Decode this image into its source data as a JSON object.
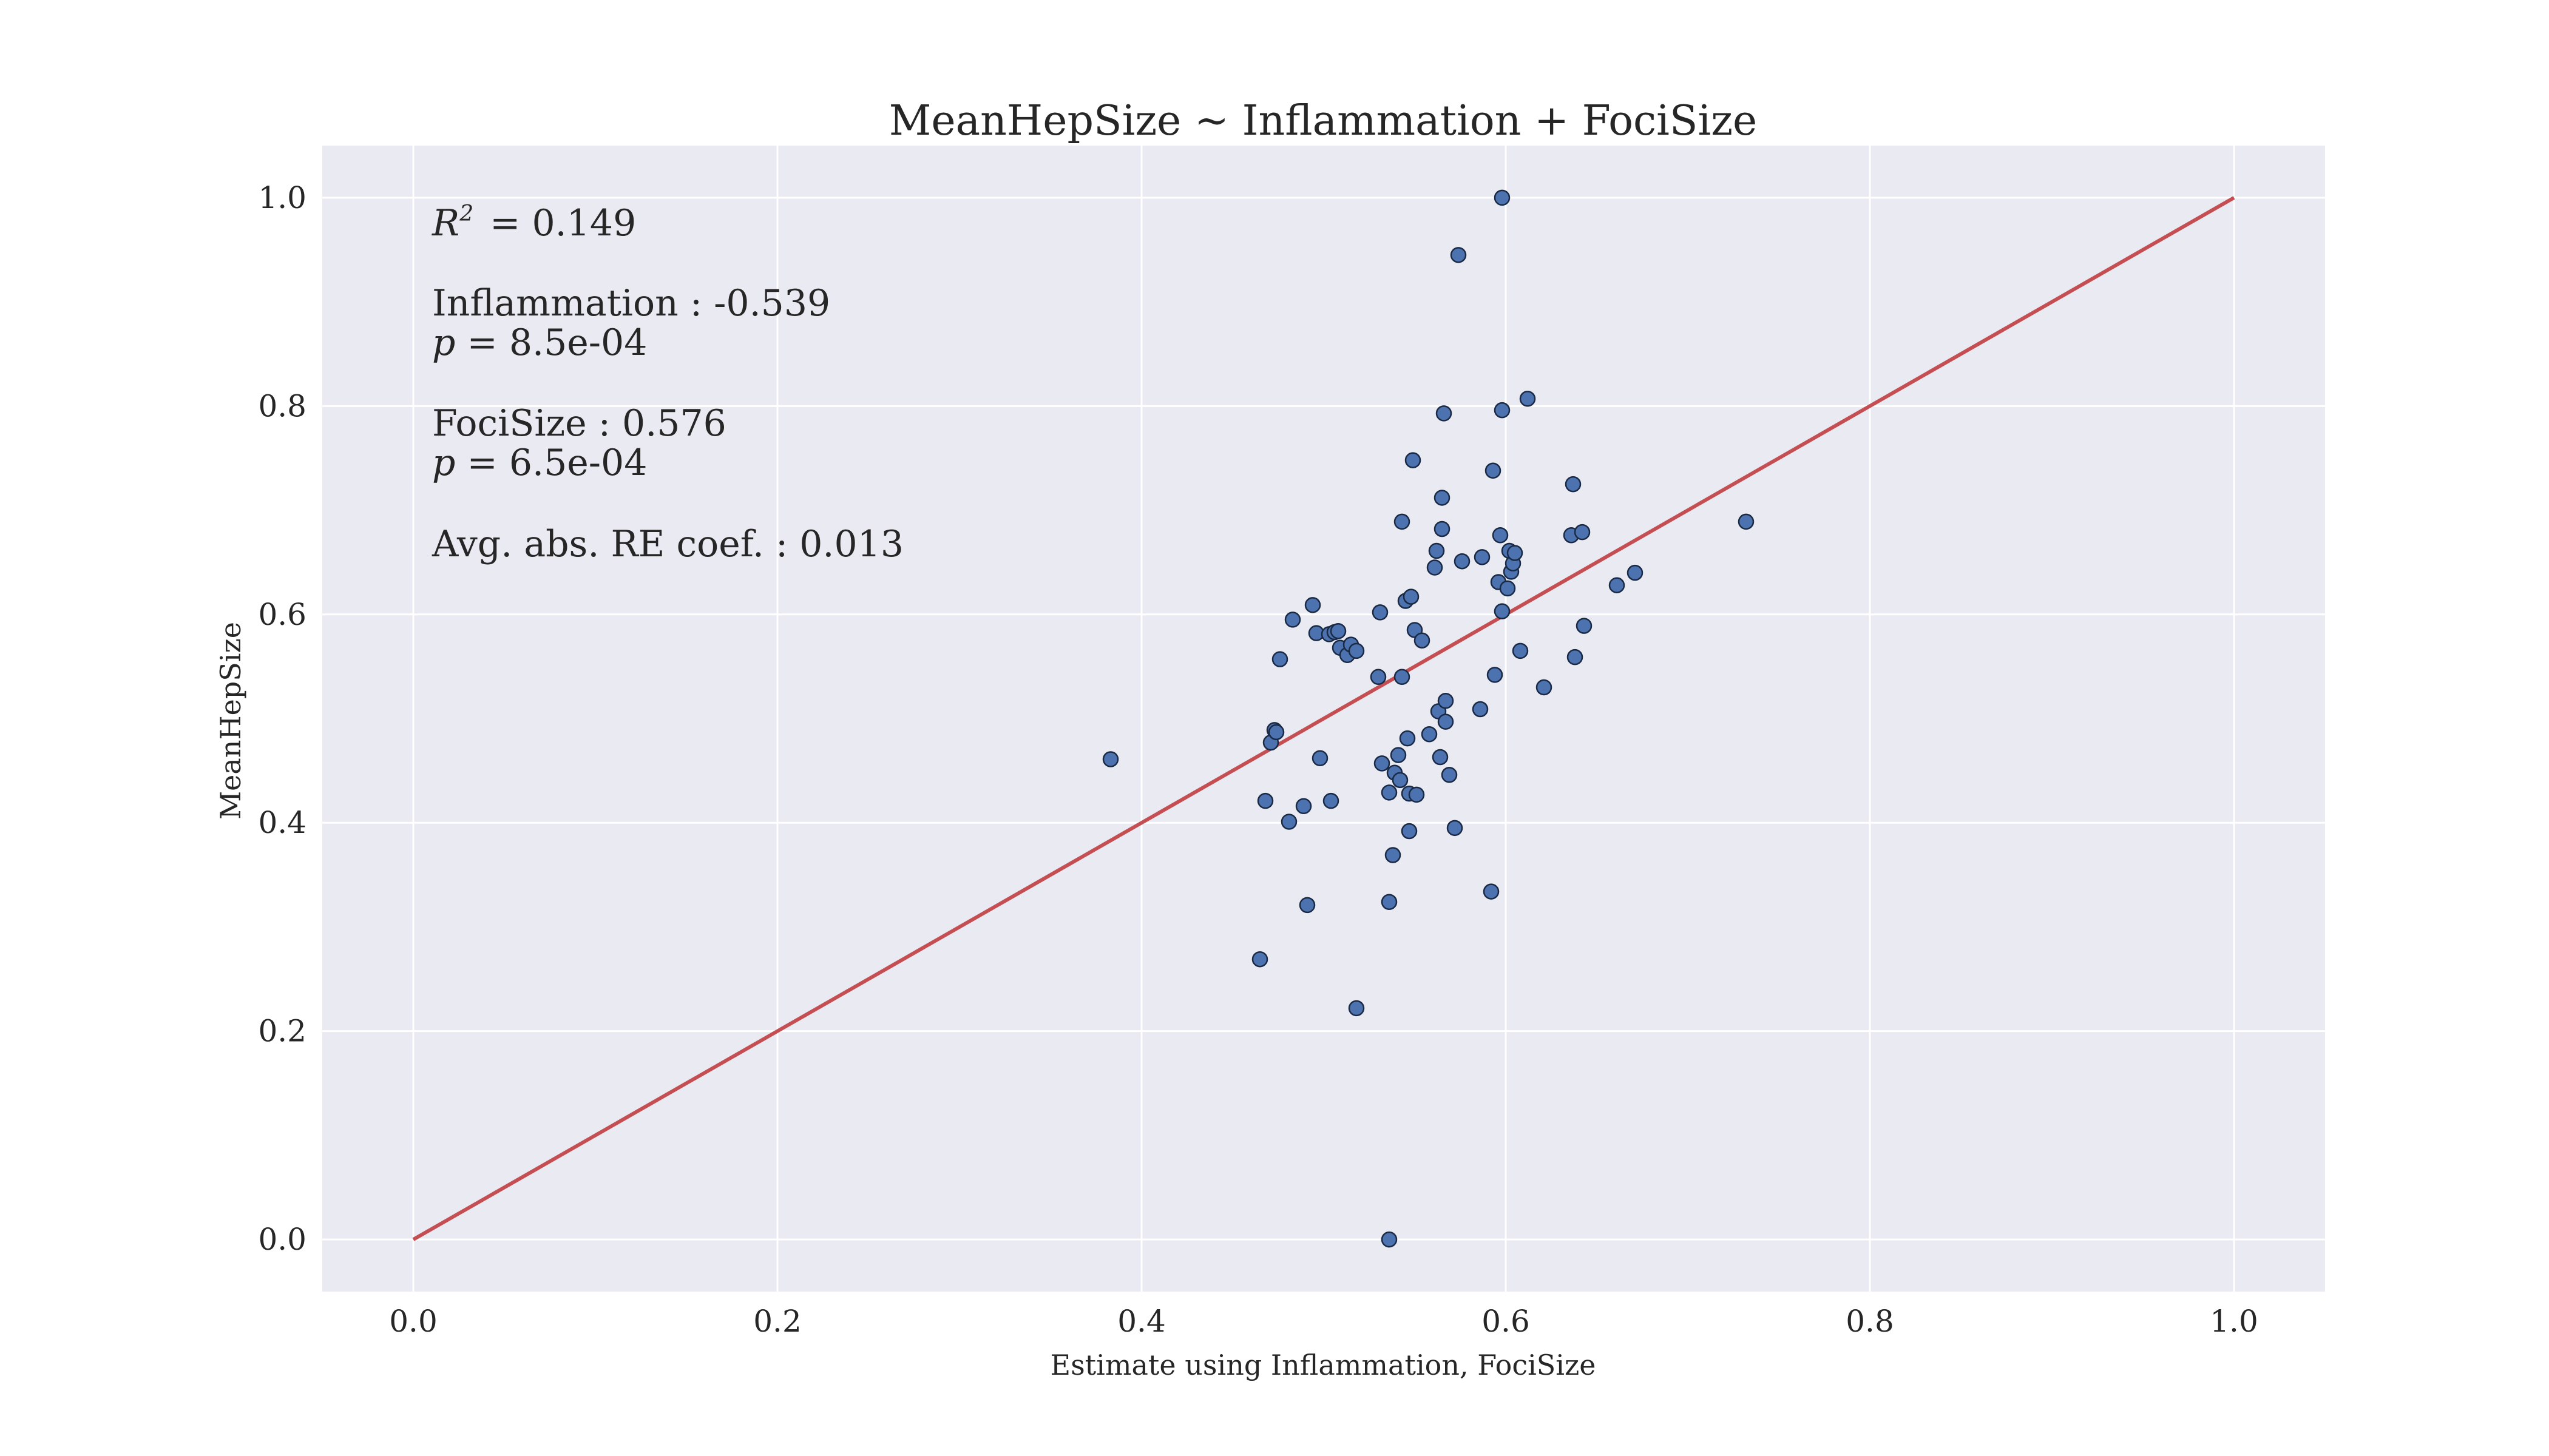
{
  "chart_data": {
    "type": "scatter",
    "title": "MeanHepSize ~ Inflammation + FociSize",
    "xlabel": "Estimate using Inflammation, FociSize",
    "ylabel": "MeanHepSize",
    "xlim": [
      -0.05,
      1.05
    ],
    "ylim": [
      -0.05,
      1.05
    ],
    "xticks": [
      "0.0",
      "0.2",
      "0.4",
      "0.6",
      "0.8",
      "1.0"
    ],
    "yticks": [
      "0.0",
      "0.2",
      "0.4",
      "0.6",
      "0.8",
      "1.0"
    ],
    "grid": true,
    "background": "#eaeaf2",
    "point_color": "#4c72b0",
    "line_color": "#c44e52",
    "reference_line": {
      "x": [
        0.0,
        1.0
      ],
      "y": [
        0.0,
        1.0
      ]
    },
    "annotations": {
      "r2_symbol": "R",
      "r2_exponent": "2",
      "r2_text": " = 0.149",
      "coef1_name": "Inflammation : -0.539",
      "p_symbol": "p",
      "p1_text": " = 8.5e-04",
      "coef2_name": "FociSize : 0.576",
      "p2_text": " = 6.5e-04",
      "re_text": "Avg. abs. RE coef. : 0.013"
    },
    "points": [
      [
        0.383,
        0.461
      ],
      [
        0.465,
        0.269
      ],
      [
        0.468,
        0.421
      ],
      [
        0.471,
        0.477
      ],
      [
        0.473,
        0.489
      ],
      [
        0.474,
        0.487
      ],
      [
        0.476,
        0.557
      ],
      [
        0.481,
        0.401
      ],
      [
        0.483,
        0.595
      ],
      [
        0.489,
        0.416
      ],
      [
        0.491,
        0.321
      ],
      [
        0.494,
        0.609
      ],
      [
        0.496,
        0.582
      ],
      [
        0.498,
        0.462
      ],
      [
        0.503,
        0.581
      ],
      [
        0.504,
        0.421
      ],
      [
        0.506,
        0.583
      ],
      [
        0.508,
        0.584
      ],
      [
        0.509,
        0.568
      ],
      [
        0.513,
        0.561
      ],
      [
        0.515,
        0.571
      ],
      [
        0.518,
        0.222
      ],
      [
        0.518,
        0.565
      ],
      [
        0.53,
        0.54
      ],
      [
        0.531,
        0.602
      ],
      [
        0.532,
        0.457
      ],
      [
        0.536,
        0.324
      ],
      [
        0.536,
        0.429
      ],
      [
        0.536,
        0.0
      ],
      [
        0.538,
        0.369
      ],
      [
        0.539,
        0.448
      ],
      [
        0.541,
        0.465
      ],
      [
        0.542,
        0.441
      ],
      [
        0.543,
        0.54
      ],
      [
        0.543,
        0.689
      ],
      [
        0.545,
        0.613
      ],
      [
        0.546,
        0.481
      ],
      [
        0.547,
        0.428
      ],
      [
        0.547,
        0.392
      ],
      [
        0.548,
        0.617
      ],
      [
        0.549,
        0.748
      ],
      [
        0.55,
        0.585
      ],
      [
        0.551,
        0.427
      ],
      [
        0.554,
        0.575
      ],
      [
        0.558,
        0.485
      ],
      [
        0.561,
        0.645
      ],
      [
        0.562,
        0.661
      ],
      [
        0.563,
        0.507
      ],
      [
        0.564,
        0.463
      ],
      [
        0.565,
        0.712
      ],
      [
        0.565,
        0.682
      ],
      [
        0.566,
        0.793
      ],
      [
        0.567,
        0.497
      ],
      [
        0.567,
        0.517
      ],
      [
        0.569,
        0.446
      ],
      [
        0.572,
        0.395
      ],
      [
        0.574,
        0.945
      ],
      [
        0.576,
        0.651
      ],
      [
        0.586,
        0.509
      ],
      [
        0.587,
        0.655
      ],
      [
        0.592,
        0.334
      ],
      [
        0.593,
        0.738
      ],
      [
        0.594,
        0.542
      ],
      [
        0.596,
        0.631
      ],
      [
        0.597,
        0.676
      ],
      [
        0.598,
        0.603
      ],
      [
        0.598,
        0.796
      ],
      [
        0.598,
        1.0
      ],
      [
        0.601,
        0.625
      ],
      [
        0.602,
        0.661
      ],
      [
        0.603,
        0.641
      ],
      [
        0.604,
        0.649
      ],
      [
        0.605,
        0.659
      ],
      [
        0.608,
        0.565
      ],
      [
        0.612,
        0.807
      ],
      [
        0.621,
        0.53
      ],
      [
        0.636,
        0.676
      ],
      [
        0.637,
        0.725
      ],
      [
        0.638,
        0.559
      ],
      [
        0.642,
        0.679
      ],
      [
        0.643,
        0.589
      ],
      [
        0.661,
        0.628
      ],
      [
        0.671,
        0.64
      ],
      [
        0.732,
        0.689
      ]
    ]
  }
}
